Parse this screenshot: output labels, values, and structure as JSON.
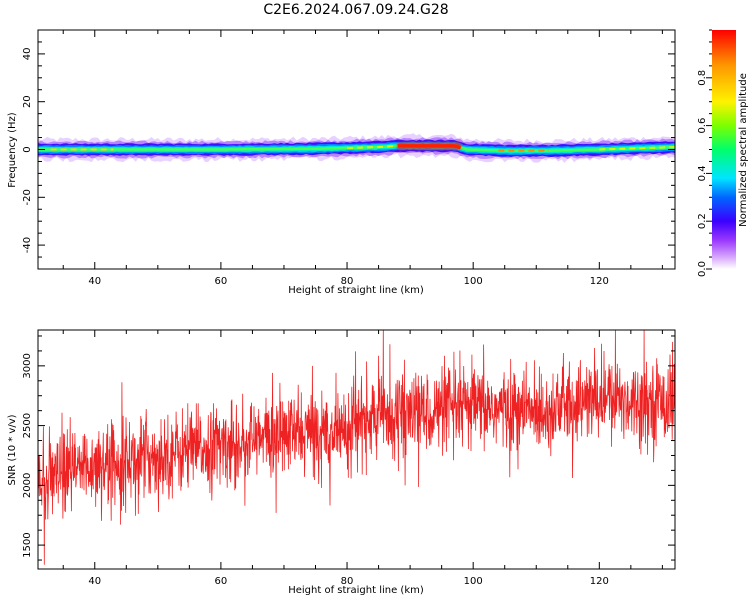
{
  "figure": {
    "title": "C2E6.2024.067.09.24.G28"
  },
  "chart_data": [
    {
      "type": "heatmap",
      "xlabel": "Height of straight line (km)",
      "ylabel": "Frequency (Hz)",
      "xlim": [
        31,
        132
      ],
      "ylim": [
        -50,
        50
      ],
      "x_ticks": [
        40,
        60,
        80,
        100,
        120
      ],
      "y_ticks": [
        -40,
        -20,
        0,
        20,
        40
      ],
      "grid": false,
      "colorbar": {
        "label": "Normalized spectral amplitude",
        "range": [
          0,
          1
        ],
        "ticks": [
          0.0,
          0.2,
          0.4,
          0.6,
          0.8
        ],
        "tick_labels": [
          "0.0",
          "0.2",
          "0.4",
          "0.6",
          "0.8"
        ],
        "colormap_stops": [
          "#ffffff",
          "#d7a6ff",
          "#9a38ff",
          "#3a00ff",
          "#0066ff",
          "#00e5ff",
          "#00ff6a",
          "#7cff00",
          "#fff200",
          "#ff9900",
          "#ff0000"
        ]
      },
      "band_center_hz": [
        [
          31,
          0
        ],
        [
          45,
          0
        ],
        [
          60,
          0
        ],
        [
          75,
          0.3
        ],
        [
          85,
          1.0
        ],
        [
          88,
          1.5
        ],
        [
          97,
          1.5
        ],
        [
          99,
          0
        ],
        [
          105,
          -0.5
        ],
        [
          112,
          -0.5
        ],
        [
          120,
          0
        ],
        [
          132,
          1
        ]
      ],
      "hot_segments": [
        {
          "x": [
            88,
            98
          ],
          "level": 1.0
        },
        {
          "x": [
            33,
            43
          ],
          "level": 0.75
        },
        {
          "x": [
            104,
            112
          ],
          "level": 0.8
        },
        {
          "x": [
            80,
            88
          ],
          "level": 0.65
        },
        {
          "x": [
            120,
            132
          ],
          "level": 0.6
        }
      ]
    },
    {
      "type": "line",
      "xlabel": "Height of straight line (km)",
      "ylabel": "SNR (10 * v/v)",
      "xlim": [
        31,
        132
      ],
      "ylim": [
        1300,
        3300
      ],
      "x_ticks": [
        40,
        60,
        80,
        100,
        120
      ],
      "y_ticks": [
        1500,
        2000,
        2500,
        3000
      ],
      "grid": false,
      "series": [
        {
          "color": "#ee2222",
          "trend": [
            [
              31,
              2000
            ],
            [
              40,
              2180
            ],
            [
              50,
              2250
            ],
            [
              60,
              2330
            ],
            [
              70,
              2420
            ],
            [
              80,
              2480
            ],
            [
              86,
              2600
            ],
            [
              95,
              2620
            ],
            [
              100,
              2650
            ],
            [
              110,
              2620
            ],
            [
              120,
              2720
            ],
            [
              132,
              2700
            ]
          ],
          "noise_std": 170
        }
      ]
    }
  ]
}
